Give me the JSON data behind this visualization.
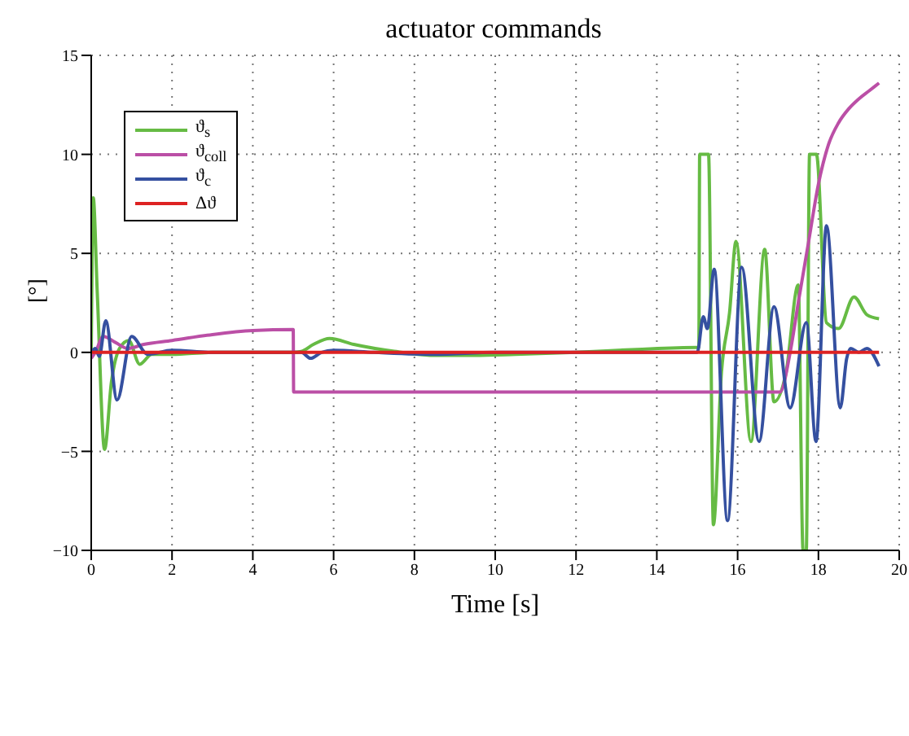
{
  "chart_data": {
    "type": "line",
    "title": "actuator commands",
    "xlabel": "Time [s]",
    "ylabel": "[°]",
    "xlim": [
      0,
      20
    ],
    "xticks": [
      0,
      2,
      4,
      6,
      8,
      10,
      12,
      14,
      16,
      18,
      20
    ],
    "ylim": [
      -10,
      15
    ],
    "yticks": [
      -10,
      -5,
      0,
      5,
      10,
      15
    ],
    "grid": true,
    "legend": "top left",
    "line_style": "solid",
    "marker": "none",
    "series": [
      {
        "name": "ϑ$_{s}$",
        "color": "#66bb44",
        "x": [
          0,
          0.05,
          0.15,
          0.33,
          0.5,
          0.7,
          0.93,
          1.2,
          1.5,
          2,
          3,
          4,
          5,
          5.2,
          5.5,
          5.9,
          6.5,
          7.5,
          8.5,
          9.5,
          10.5,
          12,
          13.5,
          15,
          15.04,
          15.06,
          15.28,
          15.4,
          15.6,
          15.8,
          15.96,
          16.33,
          16.67,
          16.9,
          17.2,
          17.5,
          17.62,
          17.7,
          17.78,
          17.95,
          18.2,
          18.5,
          18.88,
          19.2,
          19.5
        ],
        "values": [
          0,
          7.8,
          3,
          -4.9,
          -1.5,
          0.2,
          0.6,
          -0.6,
          -0.1,
          -0.1,
          0,
          0,
          0,
          0.05,
          0.4,
          0.7,
          0.4,
          0.05,
          -0.15,
          -0.15,
          -0.1,
          0,
          0.15,
          0.25,
          0.25,
          10,
          10,
          -8.7,
          -1,
          2,
          5.6,
          -4.5,
          5.2,
          -2.5,
          -1,
          3.4,
          -10,
          -10,
          10,
          10,
          1.5,
          1.2,
          2.8,
          1.9,
          1.7
        ]
      },
      {
        "name": "ϑ$_{coll}$",
        "color": "#bb4fa6",
        "x": [
          0,
          0.1,
          0.3,
          0.6,
          0.9,
          1.3,
          2,
          3,
          4,
          5,
          5.01,
          17.05,
          17.3,
          17.5,
          17.75,
          18,
          18.25,
          18.5,
          18.75,
          19,
          19.25,
          19.5
        ],
        "values": [
          -0.3,
          0,
          0.8,
          0.5,
          0.2,
          0.4,
          0.6,
          0.9,
          1.1,
          1.15,
          -2,
          -2,
          0,
          2.5,
          5.5,
          8.5,
          10.5,
          11.6,
          12.3,
          12.8,
          13.2,
          13.6
        ]
      },
      {
        "name": "ϑ$_{c}$",
        "color": "#3550a0",
        "x": [
          0,
          0.1,
          0.2,
          0.36,
          0.64,
          1,
          1.4,
          2,
          3,
          5,
          5.2,
          5.43,
          5.7,
          6,
          7,
          8.5,
          10,
          12,
          15,
          15.15,
          15.25,
          15.42,
          15.75,
          16.1,
          16.53,
          16.9,
          17.3,
          17.7,
          17.94,
          18.2,
          18.54,
          18.7,
          18.8,
          19,
          19.2,
          19.5
        ],
        "values": [
          0,
          0.2,
          -0.2,
          1.6,
          -2.4,
          0.8,
          -0.1,
          0.1,
          0,
          0,
          0,
          -0.3,
          0,
          0.1,
          0,
          -0.1,
          0,
          0,
          0,
          1.8,
          1.2,
          4.2,
          -8.5,
          4.3,
          -4.5,
          2.3,
          -2.8,
          1.5,
          -4.5,
          6.4,
          -2.8,
          -0.3,
          0.2,
          0,
          0.2,
          -0.7
        ]
      },
      {
        "name": "Δϑ",
        "color": "#dd2222",
        "x": [
          0,
          19.5
        ],
        "values": [
          0,
          0
        ]
      }
    ]
  }
}
